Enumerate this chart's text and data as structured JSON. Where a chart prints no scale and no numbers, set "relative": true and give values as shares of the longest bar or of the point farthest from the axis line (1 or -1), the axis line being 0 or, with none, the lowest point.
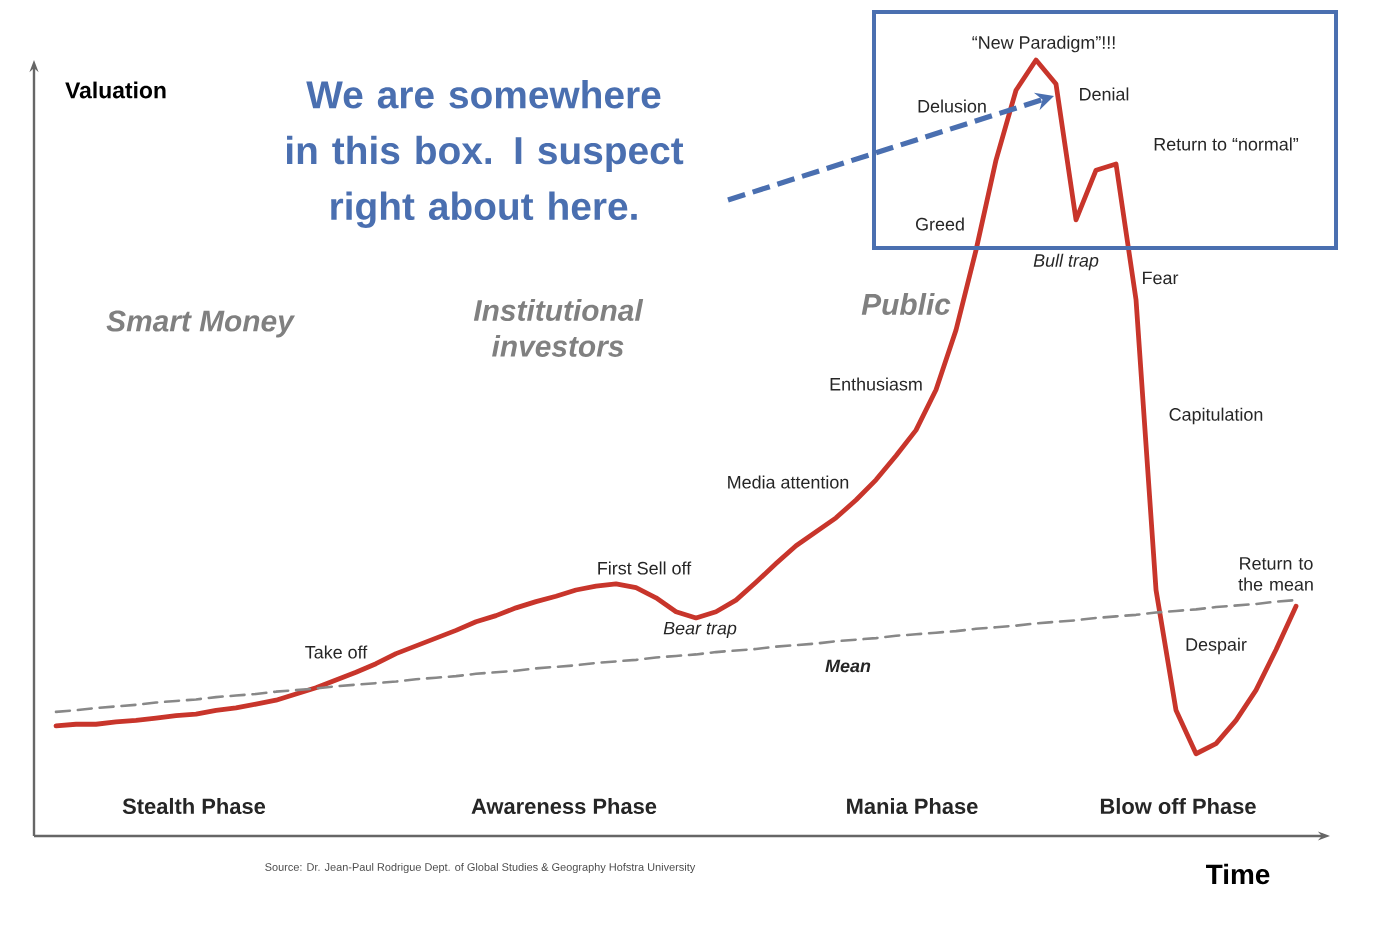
{
  "chart_data": {
    "type": "line",
    "relative": true,
    "xlabel": "Time",
    "ylabel": "Valuation",
    "categories": [
      null,
      null,
      null,
      null,
      null,
      null,
      null,
      null,
      null,
      null,
      null,
      null,
      null,
      null,
      null,
      null,
      null,
      null,
      null,
      null,
      null,
      null,
      null,
      null,
      null,
      null,
      null,
      null,
      null,
      null,
      null,
      null,
      null,
      null,
      null,
      null,
      null,
      null,
      null,
      null,
      null,
      null,
      null,
      null,
      null,
      null,
      null,
      null,
      null,
      null,
      null,
      null,
      null,
      null,
      null,
      null,
      null,
      null,
      null,
      null,
      null,
      null,
      null
    ],
    "series": [
      {
        "color": "#c8352b",
        "values": [
          0.142,
          0.144,
          0.144,
          0.147,
          0.149,
          0.152,
          0.155,
          0.157,
          0.162,
          0.165,
          0.17,
          0.175,
          0.183,
          0.191,
          0.201,
          0.211,
          0.222,
          0.235,
          0.245,
          0.255,
          0.265,
          0.276,
          0.284,
          0.294,
          0.302,
          0.309,
          0.317,
          0.322,
          0.325,
          0.32,
          0.307,
          0.289,
          0.281,
          0.289,
          0.304,
          0.327,
          0.351,
          0.374,
          0.392,
          0.41,
          0.433,
          0.459,
          0.49,
          0.523,
          0.575,
          0.652,
          0.755,
          0.871,
          0.961,
          1,
          0.969,
          0.794,
          0.858,
          0.866,
          0.691,
          0.317,
          0.162,
          0.106,
          0.119,
          0.149,
          0.188,
          0.24,
          0.296
        ]
      },
      {
        "name": "Mean",
        "color": "#888888",
        "line_style": "dashed",
        "values": [
          0.16,
          0.162,
          0.165,
          0.167,
          0.169,
          0.172,
          0.174,
          0.176,
          0.179,
          0.181,
          0.183,
          0.186,
          0.188,
          0.19,
          0.193,
          0.195,
          0.197,
          0.199,
          0.202,
          0.204,
          0.206,
          0.209,
          0.211,
          0.213,
          0.216,
          0.218,
          0.22,
          0.223,
          0.225,
          0.227,
          0.23,
          0.232,
          0.234,
          0.237,
          0.239,
          0.241,
          0.244,
          0.246,
          0.248,
          0.251,
          0.253,
          0.255,
          0.258,
          0.26,
          0.262,
          0.264,
          0.267,
          0.269,
          0.271,
          0.274,
          0.276,
          0.278,
          0.281,
          0.283,
          0.285,
          0.288,
          0.29,
          0.292,
          0.295,
          0.297,
          0.299,
          0.302,
          0.304
        ]
      }
    ],
    "annotations": [
      "We are somewhere in this box. I suspect right about here.",
      "“New Paradigm”!!!",
      "Denial",
      "Delusion",
      "Return to “normal”",
      "Greed",
      "Bull trap",
      "Fear",
      "Smart Money",
      "Institutional investors",
      "Public",
      "Enthusiasm",
      "Capitulation",
      "Media attention",
      "First Sell off",
      "Return to the mean",
      "Take off",
      "Bear trap",
      "Despair",
      "Stealth Phase",
      "Awareness Phase",
      "Mania Phase",
      "Blow off Phase",
      "Source: Dr. Jean-Paul Rodrigue Dept. of Global Studies & Geography Hofstra University"
    ]
  }
}
